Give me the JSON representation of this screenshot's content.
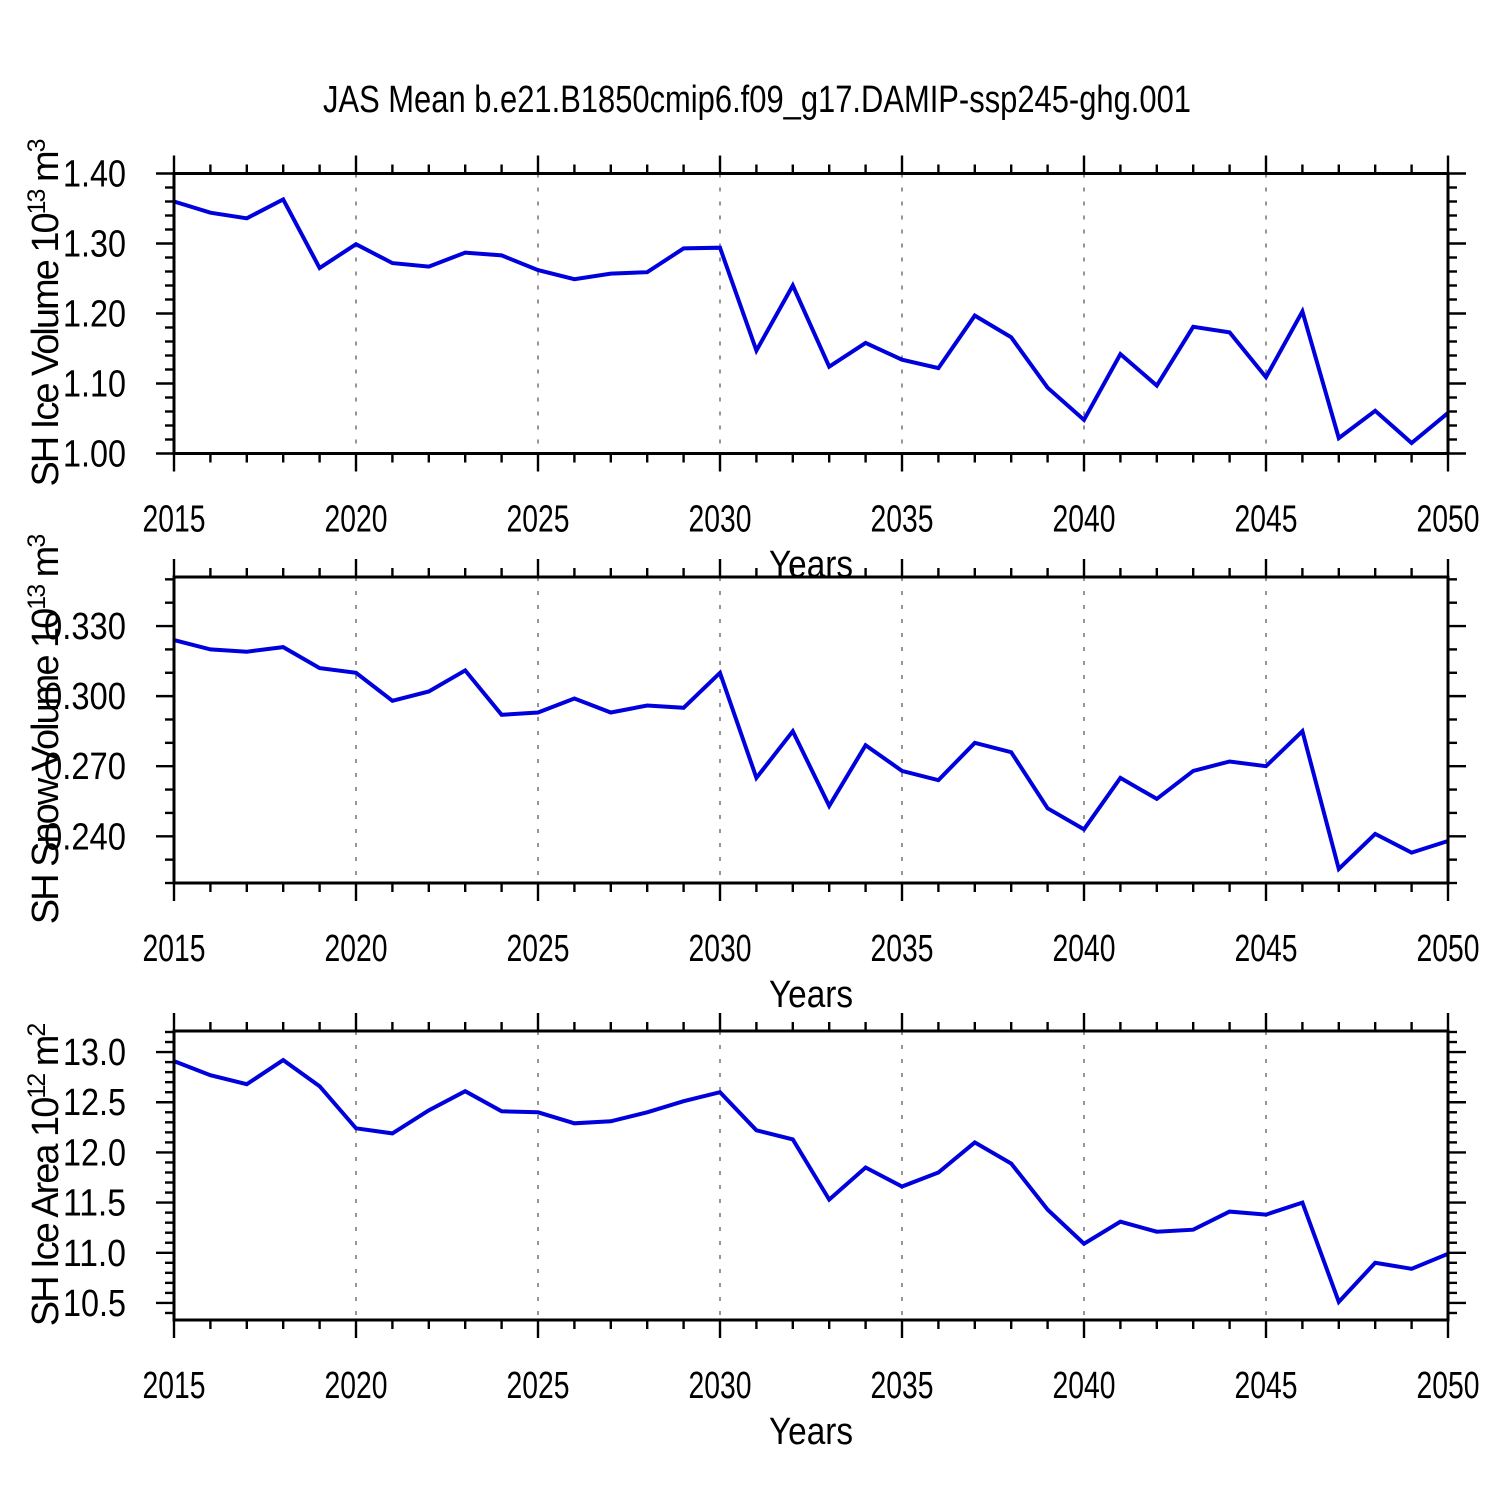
{
  "title": "JAS Mean b.e21.B1850cmip6.f09_g17.DAMIP-ssp245-ghg.001",
  "colors": {
    "line": "#0000dd",
    "grid": "#8a8a8a",
    "axis": "#000000",
    "text": "#000000",
    "background": "#ffffff"
  },
  "x_axis": {
    "label": "Years",
    "start_year": 2015,
    "end_year": 2050,
    "major_tick_step": 5,
    "minor_tick_step": 1,
    "tick_labels": [
      "2015",
      "2020",
      "2025",
      "2030",
      "2035",
      "2040",
      "2045",
      "2050"
    ],
    "gridline_years": [
      2020,
      2025,
      2030,
      2035,
      2040,
      2045
    ],
    "years": [
      2015,
      2016,
      2017,
      2018,
      2019,
      2020,
      2021,
      2022,
      2023,
      2024,
      2025,
      2026,
      2027,
      2028,
      2029,
      2030,
      2031,
      2032,
      2033,
      2034,
      2035,
      2036,
      2037,
      2038,
      2039,
      2040,
      2041,
      2042,
      2043,
      2044,
      2045,
      2046,
      2047,
      2048,
      2049,
      2050
    ]
  },
  "chart_data": [
    {
      "type": "line",
      "name": "sh-ice-volume",
      "ylabel_text": "SH Ice Volume 10^13 m^3",
      "ylabel_segments": [
        {
          "t": "SH Ice Volume 10"
        },
        {
          "t": "13",
          "sup": true
        },
        {
          "t": " m"
        },
        {
          "t": "3",
          "sup": true
        }
      ],
      "ylim": [
        1.0,
        1.4
      ],
      "yticks": [
        1.0,
        1.1,
        1.2,
        1.3,
        1.4
      ],
      "ytick_labels": [
        "1.00",
        "1.10",
        "1.20",
        "1.30",
        "1.40"
      ],
      "yminor_step": 0.02,
      "values": [
        1.36,
        1.344,
        1.336,
        1.363,
        1.265,
        1.299,
        1.272,
        1.267,
        1.287,
        1.283,
        1.262,
        1.249,
        1.257,
        1.259,
        1.293,
        1.294,
        1.147,
        1.24,
        1.124,
        1.158,
        1.134,
        1.122,
        1.197,
        1.166,
        1.094,
        1.048,
        1.142,
        1.097,
        1.181,
        1.173,
        1.109,
        1.203,
        1.022,
        1.061,
        1.015,
        1.058
      ]
    },
    {
      "type": "line",
      "name": "sh-snow-volume",
      "ylabel_text": "SH Snow Volume 10^13 m^3",
      "ylabel_segments": [
        {
          "t": "SH Snow Volume 10"
        },
        {
          "t": "13",
          "sup": true
        },
        {
          "t": " m"
        },
        {
          "t": "3",
          "sup": true
        }
      ],
      "ylim": [
        0.22,
        0.351
      ],
      "yticks": [
        0.24,
        0.27,
        0.3,
        0.33
      ],
      "ytick_labels": [
        "0.240",
        "0.270",
        "0.300",
        "0.330"
      ],
      "yminor_step": 0.01,
      "values": [
        0.324,
        0.32,
        0.319,
        0.321,
        0.312,
        0.31,
        0.298,
        0.302,
        0.311,
        0.292,
        0.293,
        0.299,
        0.293,
        0.296,
        0.295,
        0.31,
        0.265,
        0.285,
        0.253,
        0.279,
        0.268,
        0.264,
        0.28,
        0.276,
        0.252,
        0.243,
        0.265,
        0.256,
        0.268,
        0.272,
        0.27,
        0.285,
        0.226,
        0.241,
        0.233,
        0.238
      ]
    },
    {
      "type": "line",
      "name": "sh-ice-area",
      "ylabel_text": "SH Ice Area 10^12 m^2",
      "ylabel_segments": [
        {
          "t": "SH Ice Area 10"
        },
        {
          "t": "12",
          "sup": true
        },
        {
          "t": " m"
        },
        {
          "t": "2",
          "sup": true
        }
      ],
      "ylim": [
        10.33,
        13.21
      ],
      "yticks": [
        10.5,
        11.0,
        11.5,
        12.0,
        12.5,
        13.0
      ],
      "ytick_labels": [
        "10.5",
        "11.0",
        "11.5",
        "12.0",
        "12.5",
        "13.0"
      ],
      "yminor_step": 0.1,
      "values": [
        12.91,
        12.77,
        12.68,
        12.92,
        12.66,
        12.24,
        12.19,
        12.42,
        12.61,
        12.41,
        12.4,
        12.29,
        12.31,
        12.4,
        12.51,
        12.6,
        12.22,
        12.13,
        11.53,
        11.85,
        11.66,
        11.8,
        12.1,
        11.89,
        11.43,
        11.09,
        11.31,
        11.21,
        11.23,
        11.41,
        11.38,
        11.5,
        10.51,
        10.9,
        10.84,
        10.99
      ]
    }
  ]
}
